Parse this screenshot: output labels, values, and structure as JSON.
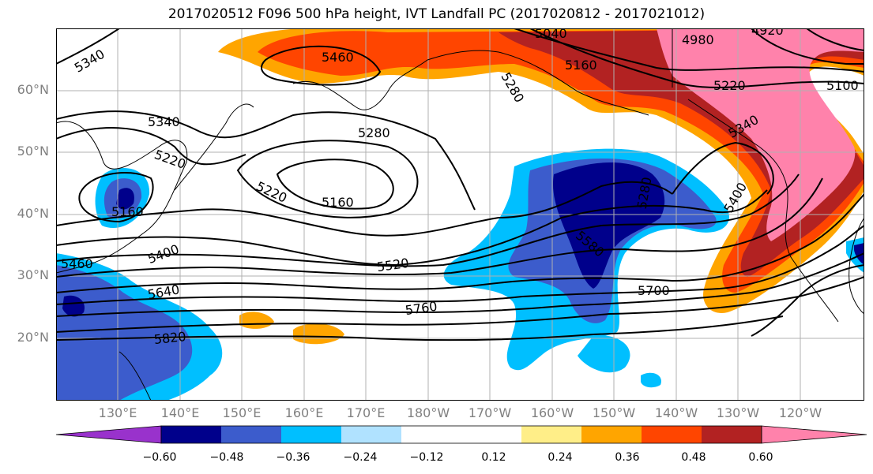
{
  "title": "2017020512 F096 500 hPa height, IVT Landfall PC (2017020812 - 2017021012)",
  "lat_labels": [
    "60°N",
    "50°N",
    "40°N",
    "30°N",
    "20°N"
  ],
  "lon_labels": [
    "130°E",
    "140°E",
    "150°E",
    "160°E",
    "170°E",
    "180°W",
    "170°W",
    "160°W",
    "150°W",
    "140°W",
    "130°W",
    "120°W"
  ],
  "colorbar": {
    "colors": [
      "#9932cc",
      "#00008b",
      "#3c5ccc",
      "#00bfff",
      "#b0e2ff",
      "#ffffff",
      "#ffffff",
      "#ffee88",
      "#ffa500",
      "#ff4500",
      "#b22222",
      "#ff82ab"
    ],
    "ticks": [
      "−0.60",
      "−0.48",
      "−0.36",
      "−0.24",
      "−0.12",
      "0.12",
      "0.24",
      "0.36",
      "0.48",
      "0.60"
    ]
  },
  "contour_labels": [
    "5340",
    "5460",
    "5040",
    "4980",
    "4920",
    "5160",
    "5280",
    "5220",
    "5100",
    "5340",
    "5280",
    "5220",
    "5220",
    "5160",
    "5160",
    "5280",
    "5340",
    "5400",
    "5400",
    "5460",
    "5520",
    "5580",
    "5640",
    "5700",
    "5760",
    "5820"
  ]
}
